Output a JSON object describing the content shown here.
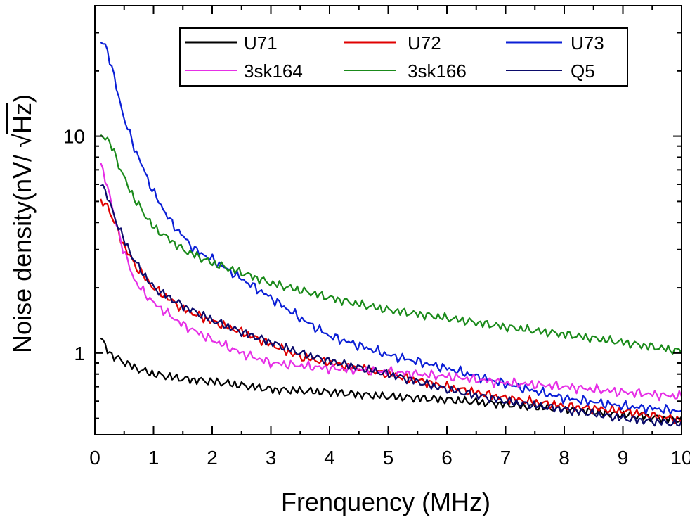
{
  "chart_data": {
    "type": "line",
    "title": "",
    "xlabel": "Frenquency (MHz)",
    "ylabel_prefix": "Noise density(nV/ ",
    "ylabel_radical": "√",
    "ylabel_unit": "Hz",
    "ylabel_suffix": ")",
    "xlim": [
      0,
      10
    ],
    "ylim": [
      0.42,
      40
    ],
    "yscale": "log",
    "grid": false,
    "legend_position": "top",
    "x_ticks": [
      0,
      1,
      2,
      3,
      4,
      5,
      6,
      7,
      8,
      9,
      10
    ],
    "x_tick_labels": [
      "0",
      "1",
      "2",
      "3",
      "4",
      "5",
      "6",
      "7",
      "8",
      "9",
      "10"
    ],
    "y_ticks": [
      1,
      10
    ],
    "y_tick_labels": [
      "1",
      "10"
    ],
    "x_minor_ticks": [
      0.5,
      1.5,
      2.5,
      3.5,
      4.5,
      5.5,
      6.5,
      7.5,
      8.5,
      9.5
    ],
    "y_minor_ticks": [
      0.5,
      0.6,
      0.7,
      0.8,
      0.9,
      2,
      3,
      4,
      5,
      6,
      7,
      8,
      9,
      20,
      30
    ],
    "series": [
      {
        "name": "U71",
        "color": "#000000",
        "x": [
          0.1,
          0.2,
          0.3,
          0.5,
          0.7,
          1.0,
          1.5,
          2.0,
          2.5,
          3.0,
          4.0,
          5.0,
          6.0,
          7.0,
          8.0,
          9.0,
          10.0
        ],
        "values": [
          1.17,
          1.05,
          0.97,
          0.91,
          0.85,
          0.8,
          0.76,
          0.74,
          0.71,
          0.68,
          0.66,
          0.63,
          0.61,
          0.58,
          0.55,
          0.52,
          0.49
        ]
      },
      {
        "name": "U72",
        "color": "#e00000",
        "x": [
          0.1,
          0.2,
          0.3,
          0.5,
          0.7,
          1.0,
          1.5,
          2.0,
          2.5,
          3.0,
          3.5,
          4.0,
          5.0,
          6.0,
          7.0,
          8.0,
          9.0,
          10.0
        ],
        "values": [
          4.9,
          4.9,
          4.2,
          3.1,
          2.5,
          2.0,
          1.6,
          1.4,
          1.25,
          1.1,
          0.96,
          0.9,
          0.8,
          0.7,
          0.62,
          0.57,
          0.54,
          0.49
        ]
      },
      {
        "name": "U73",
        "color": "#0b1fd6",
        "x": [
          0.1,
          0.2,
          0.3,
          0.5,
          0.7,
          1.0,
          1.3,
          1.7,
          2.0,
          2.5,
          3.0,
          3.5,
          4.0,
          5.0,
          6.0,
          7.0,
          8.0,
          9.0,
          10.0
        ],
        "values": [
          27,
          26,
          20,
          12,
          8.5,
          5.5,
          4.0,
          3.0,
          2.7,
          2.2,
          1.8,
          1.45,
          1.2,
          0.98,
          0.85,
          0.72,
          0.62,
          0.57,
          0.54
        ]
      },
      {
        "name": "3sk164",
        "color": "#e62fe6",
        "x": [
          0.1,
          0.2,
          0.3,
          0.5,
          0.7,
          1.0,
          1.5,
          2.0,
          2.5,
          3.0,
          4.0,
          5.0,
          6.0,
          7.0,
          8.0,
          9.0,
          10.0
        ],
        "values": [
          7.3,
          6.2,
          4.6,
          2.9,
          2.1,
          1.7,
          1.35,
          1.15,
          1.0,
          0.9,
          0.85,
          0.82,
          0.78,
          0.73,
          0.7,
          0.66,
          0.63
        ]
      },
      {
        "name": "3sk166",
        "color": "#1a8a1a",
        "x": [
          0.1,
          0.2,
          0.3,
          0.5,
          0.7,
          1.0,
          1.5,
          2.0,
          2.5,
          3.0,
          3.5,
          4.0,
          4.5,
          5.0,
          6.0,
          7.0,
          8.0,
          9.0,
          10.0
        ],
        "values": [
          10.2,
          9.8,
          8.8,
          6.4,
          5.0,
          3.8,
          3.0,
          2.6,
          2.35,
          2.1,
          1.95,
          1.8,
          1.68,
          1.58,
          1.45,
          1.32,
          1.22,
          1.12,
          1.02
        ]
      },
      {
        "name": "Q5",
        "color": "#0b0b6b",
        "x": [
          0.1,
          0.2,
          0.3,
          0.5,
          0.7,
          1.0,
          1.5,
          2.0,
          2.5,
          3.0,
          3.5,
          4.0,
          5.0,
          6.0,
          7.0,
          8.0,
          9.0,
          10.0
        ],
        "values": [
          6.2,
          5.4,
          4.5,
          3.3,
          2.6,
          2.0,
          1.65,
          1.42,
          1.25,
          1.12,
          1.0,
          0.92,
          0.8,
          0.68,
          0.6,
          0.55,
          0.5,
          0.47
        ]
      }
    ]
  }
}
